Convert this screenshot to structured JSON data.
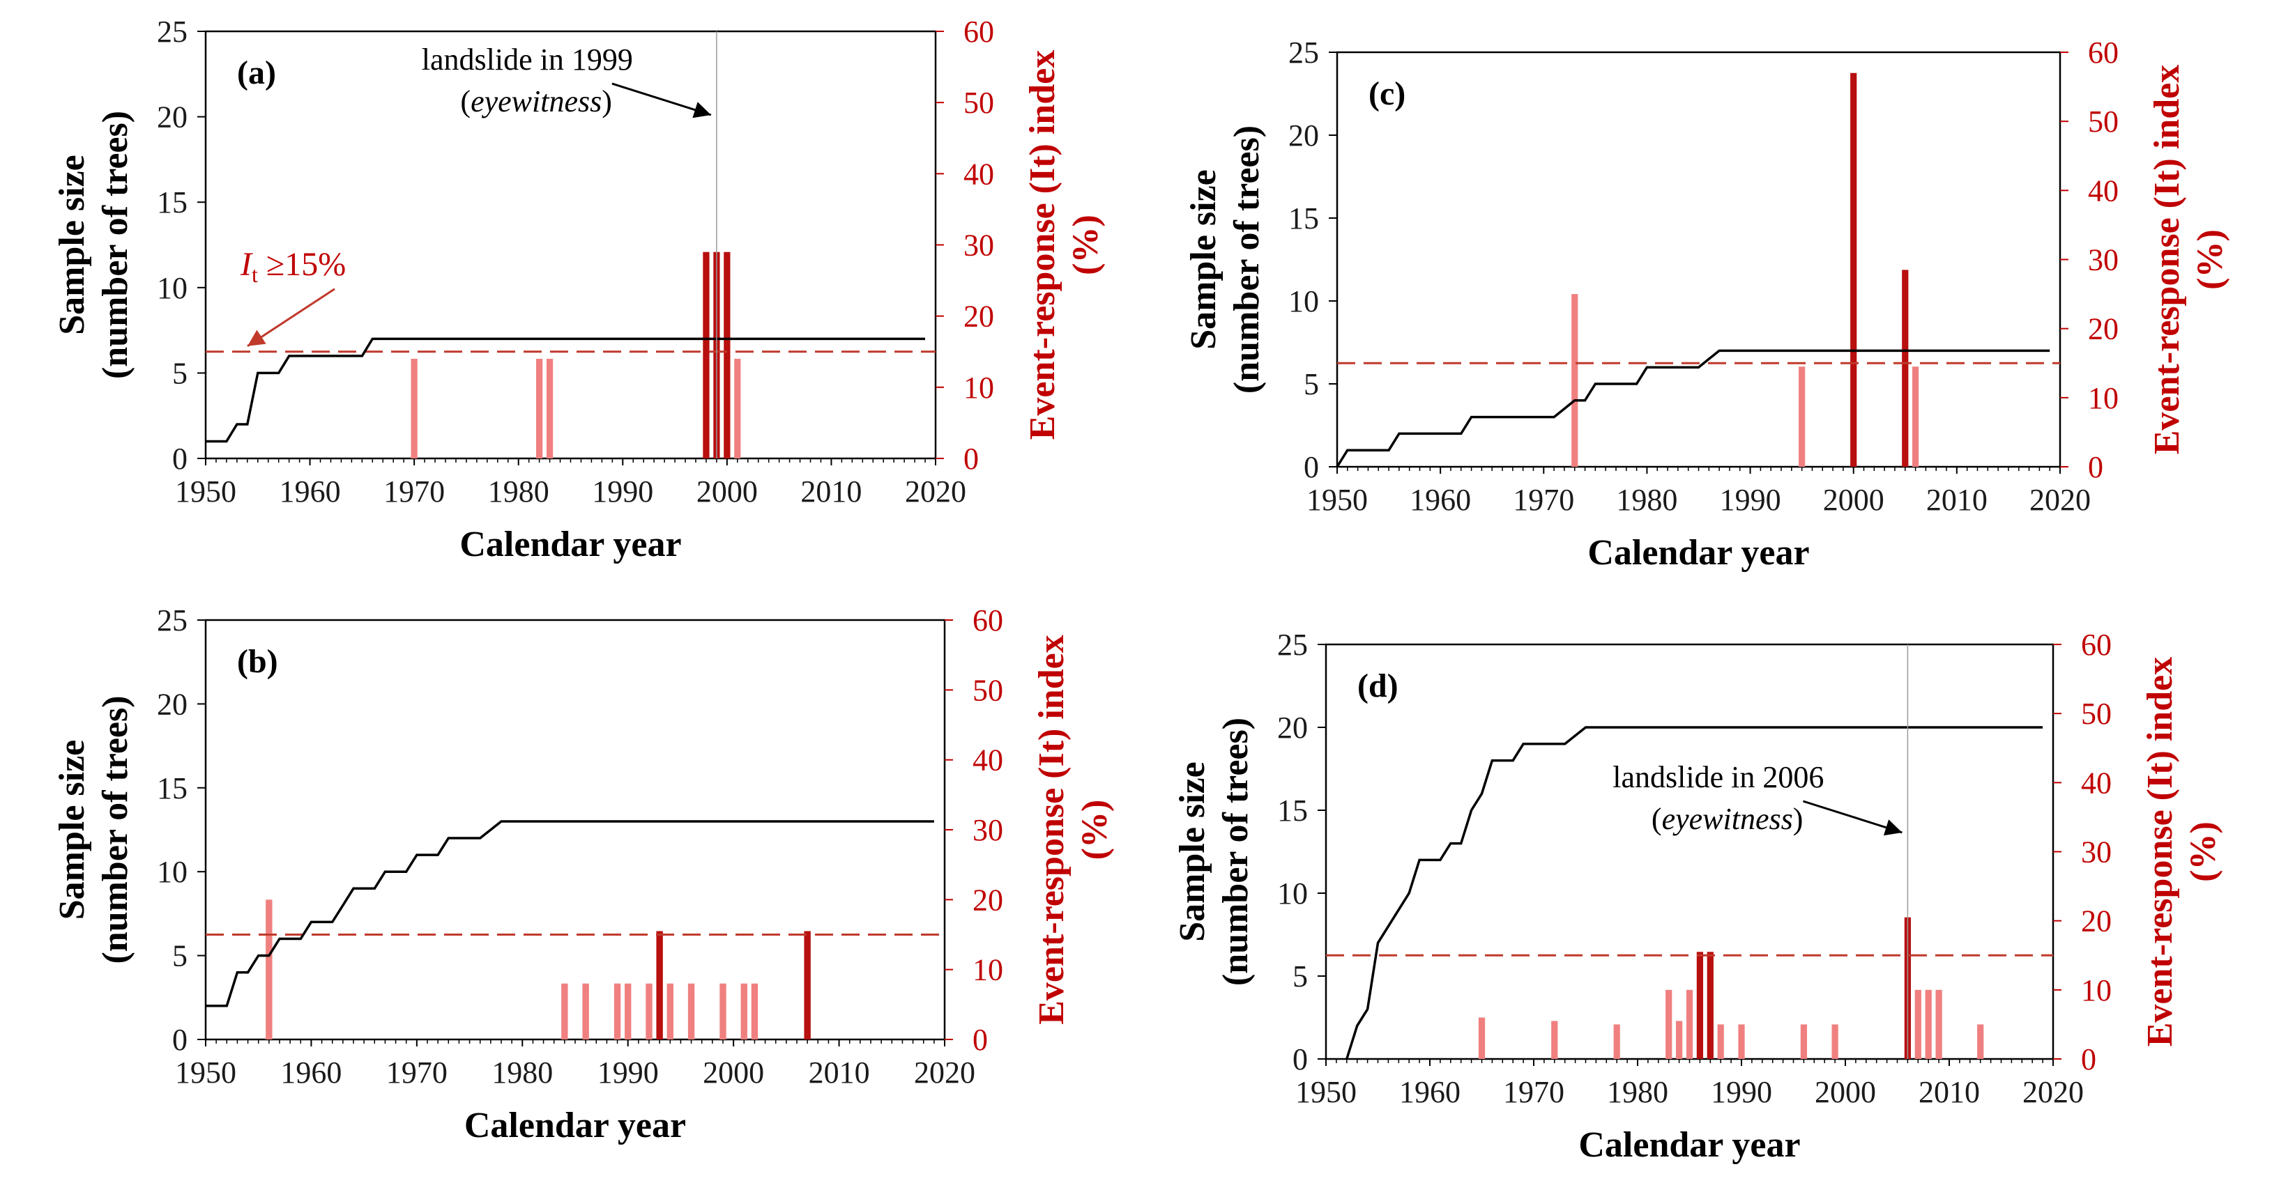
{
  "colors": {
    "sample_line": "#000000",
    "bar_dark": "#b80f0f",
    "bar_light": "#f08080",
    "threshold": "#c0392b",
    "right_axis": "#c00000"
  },
  "chart_data": [
    {
      "id": "a",
      "type": "bar+line",
      "panel_label": "(a)",
      "xlabel": "Calendar year",
      "ylabel_lines": [
        "Sample size",
        "(number of trees)"
      ],
      "y2label_lines": [
        "Event-response (It) index",
        "(%)"
      ],
      "xlim": [
        1950,
        2020
      ],
      "ylim": [
        0,
        25
      ],
      "y2lim": [
        0,
        60
      ],
      "xticks": [
        "1950",
        "1960",
        "1970",
        "1980",
        "1990",
        "2000",
        "2010",
        "2020"
      ],
      "yticks": [
        "0",
        "5",
        "10",
        "15",
        "20",
        "25"
      ],
      "y2ticks": [
        "0",
        "10",
        "20",
        "30",
        "40",
        "50",
        "60"
      ],
      "threshold_pct": 15,
      "sample_size": [
        [
          1950,
          1
        ],
        [
          1952,
          1
        ],
        [
          1953,
          2
        ],
        [
          1954,
          2
        ],
        [
          1955,
          5
        ],
        [
          1957,
          5
        ],
        [
          1958,
          6
        ],
        [
          1965,
          6
        ],
        [
          1966,
          7
        ],
        [
          2019,
          7
        ]
      ],
      "bars_dark": [
        {
          "year": 1998,
          "value": 29
        },
        {
          "year": 1999,
          "value": 29
        },
        {
          "year": 2000,
          "value": 29
        }
      ],
      "bars_light": [
        {
          "year": 1970,
          "value": 14
        },
        {
          "year": 1982,
          "value": 14
        },
        {
          "year": 1983,
          "value": 14
        },
        {
          "year": 2001,
          "value": 14
        }
      ],
      "annotation": {
        "line1": "landslide in 1999",
        "line2": "eyewitness",
        "year": 1999
      },
      "threshold_annotation": {
        "symbol": "I",
        "sub": "t",
        "rest": " ≥15%"
      }
    },
    {
      "id": "b",
      "type": "bar+line",
      "panel_label": "(b)",
      "xlabel": "Calendar year",
      "ylabel_lines": [
        "Sample size",
        "(number of trees)"
      ],
      "y2label_lines": [
        "Event-response (It) index",
        "(%)"
      ],
      "xlim": [
        1950,
        2020
      ],
      "ylim": [
        0,
        25
      ],
      "y2lim": [
        0,
        60
      ],
      "xticks": [
        "1950",
        "1960",
        "1970",
        "1980",
        "1990",
        "2000",
        "2010",
        "2020"
      ],
      "yticks": [
        "0",
        "5",
        "10",
        "15",
        "20",
        "25"
      ],
      "y2ticks": [
        "0",
        "10",
        "20",
        "30",
        "40",
        "50",
        "60"
      ],
      "threshold_pct": 15,
      "sample_size": [
        [
          1950,
          2
        ],
        [
          1952,
          2
        ],
        [
          1953,
          4
        ],
        [
          1954,
          4
        ],
        [
          1955,
          5
        ],
        [
          1956,
          5
        ],
        [
          1957,
          6
        ],
        [
          1959,
          6
        ],
        [
          1960,
          7
        ],
        [
          1962,
          7
        ],
        [
          1963,
          8
        ],
        [
          1964,
          9
        ],
        [
          1966,
          9
        ],
        [
          1967,
          10
        ],
        [
          1969,
          10
        ],
        [
          1970,
          11
        ],
        [
          1972,
          11
        ],
        [
          1973,
          12
        ],
        [
          1976,
          12
        ],
        [
          1977,
          12.5
        ],
        [
          1978,
          13
        ],
        [
          2019,
          13
        ]
      ],
      "bars_dark": [
        {
          "year": 1993,
          "value": 15.5
        },
        {
          "year": 2007,
          "value": 15.5
        }
      ],
      "bars_light": [
        {
          "year": 1956,
          "value": 20
        },
        {
          "year": 1984,
          "value": 8
        },
        {
          "year": 1986,
          "value": 8
        },
        {
          "year": 1989,
          "value": 8
        },
        {
          "year": 1990,
          "value": 8
        },
        {
          "year": 1992,
          "value": 8
        },
        {
          "year": 1994,
          "value": 8
        },
        {
          "year": 1996,
          "value": 8
        },
        {
          "year": 1999,
          "value": 8
        },
        {
          "year": 2001,
          "value": 8
        },
        {
          "year": 2002,
          "value": 8
        }
      ]
    },
    {
      "id": "c",
      "type": "bar+line",
      "panel_label": "(c)",
      "xlabel": "Calendar year",
      "ylabel_lines": [
        "Sample size",
        "(number of trees)"
      ],
      "y2label_lines": [
        "Event-response (It) index",
        "(%)"
      ],
      "xlim": [
        1950,
        2020
      ],
      "ylim": [
        0,
        25
      ],
      "y2lim": [
        0,
        60
      ],
      "xticks": [
        "1950",
        "1960",
        "1970",
        "1980",
        "1990",
        "2000",
        "2010",
        "2020"
      ],
      "yticks": [
        "0",
        "5",
        "10",
        "15",
        "20",
        "25"
      ],
      "y2ticks": [
        "0",
        "10",
        "20",
        "30",
        "40",
        "50",
        "60"
      ],
      "threshold_pct": 15,
      "sample_size": [
        [
          1950,
          0
        ],
        [
          1951,
          1
        ],
        [
          1955,
          1
        ],
        [
          1956,
          2
        ],
        [
          1962,
          2
        ],
        [
          1963,
          3
        ],
        [
          1971,
          3
        ],
        [
          1972,
          3.5
        ],
        [
          1973,
          4
        ],
        [
          1974,
          4
        ],
        [
          1975,
          5
        ],
        [
          1979,
          5
        ],
        [
          1980,
          6
        ],
        [
          1985,
          6
        ],
        [
          1986,
          6.5
        ],
        [
          1987,
          7
        ],
        [
          2019,
          7
        ]
      ],
      "bars_dark": [
        {
          "year": 2000,
          "value": 57
        },
        {
          "year": 2005,
          "value": 28.5
        }
      ],
      "bars_light": [
        {
          "year": 1973,
          "value": 25
        },
        {
          "year": 1995,
          "value": 14.5
        },
        {
          "year": 2006,
          "value": 14.5
        }
      ]
    },
    {
      "id": "d",
      "type": "bar+line",
      "panel_label": "(d)",
      "xlabel": "Calendar year",
      "ylabel_lines": [
        "Sample size",
        "(number of trees)"
      ],
      "y2label_lines": [
        "Event-response (It) index",
        "(%)"
      ],
      "xlim": [
        1950,
        2020
      ],
      "ylim": [
        0,
        25
      ],
      "y2lim": [
        0,
        60
      ],
      "xticks": [
        "1950",
        "1960",
        "1970",
        "1980",
        "1990",
        "2000",
        "2010",
        "2020"
      ],
      "yticks": [
        "0",
        "5",
        "10",
        "15",
        "20",
        "25"
      ],
      "y2ticks": [
        "0",
        "10",
        "20",
        "30",
        "40",
        "50",
        "60"
      ],
      "threshold_pct": 15,
      "sample_size": [
        [
          1952,
          0
        ],
        [
          1953,
          2
        ],
        [
          1954,
          3
        ],
        [
          1955,
          7
        ],
        [
          1957,
          9
        ],
        [
          1958,
          10
        ],
        [
          1959,
          12
        ],
        [
          1961,
          12
        ],
        [
          1962,
          13
        ],
        [
          1963,
          13
        ],
        [
          1964,
          15
        ],
        [
          1965,
          16
        ],
        [
          1966,
          18
        ],
        [
          1968,
          18
        ],
        [
          1969,
          19
        ],
        [
          1973,
          19
        ],
        [
          1975,
          20
        ],
        [
          2019,
          20
        ]
      ],
      "bars_dark": [
        {
          "year": 1986,
          "value": 15.5
        },
        {
          "year": 1987,
          "value": 15.5
        },
        {
          "year": 2006,
          "value": 20.5
        }
      ],
      "bars_light": [
        {
          "year": 1965,
          "value": 6
        },
        {
          "year": 1972,
          "value": 5.5
        },
        {
          "year": 1978,
          "value": 5
        },
        {
          "year": 1983,
          "value": 10
        },
        {
          "year": 1984,
          "value": 5.5
        },
        {
          "year": 1985,
          "value": 10
        },
        {
          "year": 1988,
          "value": 5
        },
        {
          "year": 1990,
          "value": 5
        },
        {
          "year": 1996,
          "value": 5
        },
        {
          "year": 1999,
          "value": 5
        },
        {
          "year": 2007,
          "value": 10
        },
        {
          "year": 2008,
          "value": 10
        },
        {
          "year": 2009,
          "value": 10
        },
        {
          "year": 2013,
          "value": 5
        }
      ],
      "annotation": {
        "line1": "landslide in 2006",
        "line2": "eyewitness",
        "year": 2006
      }
    }
  ]
}
